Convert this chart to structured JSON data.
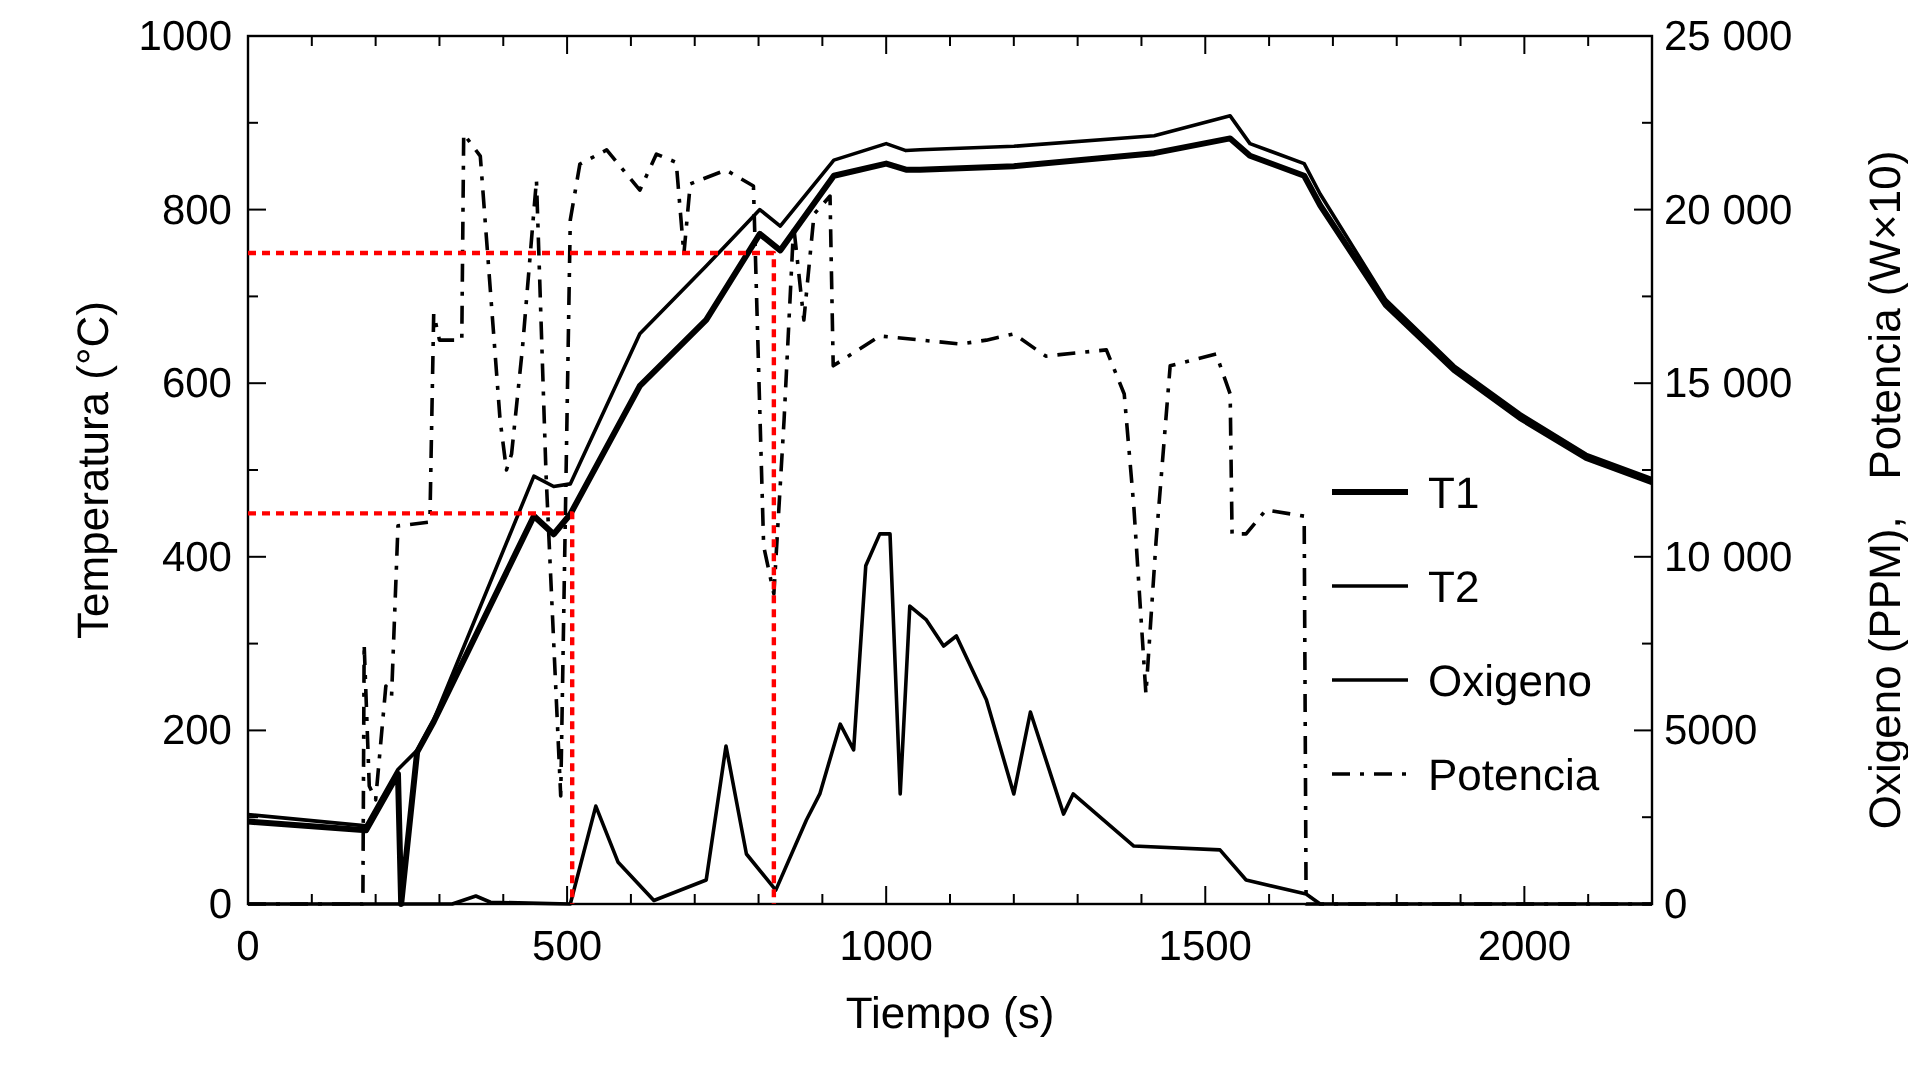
{
  "chart_data": {
    "type": "line",
    "xlabel": "Tiempo (s)",
    "ylabel": "Temperatura (°C)",
    "y2label": "Oxigeno (PPM),   Potencia (W×10)",
    "xlim": [
      0,
      2200
    ],
    "xticks": [
      0,
      {
        "value": 100,
        "label": null
      },
      {
        "value": 200,
        "label": null
      },
      {
        "value": 300,
        "label": null
      },
      {
        "value": 400,
        "label": null
      },
      500,
      {
        "value": 600,
        "label": null
      },
      {
        "value": 700,
        "label": null
      },
      {
        "value": 800,
        "label": null
      },
      {
        "value": 900,
        "label": null
      },
      1000,
      {
        "value": 1100,
        "label": null
      },
      {
        "value": 1200,
        "label": null
      },
      {
        "value": 1300,
        "label": null
      },
      {
        "value": 1400,
        "label": null
      },
      1500,
      {
        "value": 1600,
        "label": null
      },
      {
        "value": 1700,
        "label": null
      },
      {
        "value": 1800,
        "label": null
      },
      {
        "value": 1900,
        "label": null
      },
      2000,
      {
        "value": 2100,
        "label": null
      }
    ],
    "ylim": [
      0,
      1000
    ],
    "yticks": [
      0,
      {
        "value": 100,
        "label": null
      },
      200,
      {
        "value": 300,
        "label": null
      },
      400,
      {
        "value": 500,
        "label": null
      },
      600,
      {
        "value": 700,
        "label": null
      },
      800,
      {
        "value": 900,
        "label": null
      },
      1000
    ],
    "y2lim": [
      0,
      25000
    ],
    "y2ticks": [
      0,
      {
        "value": 2500,
        "label": null
      },
      5000,
      {
        "value": 7500,
        "label": null
      },
      {
        "value": 10000,
        "label": "10 000"
      },
      {
        "value": 12500,
        "label": null
      },
      {
        "value": 15000,
        "label": "15 000"
      },
      {
        "value": 17500,
        "label": null
      },
      {
        "value": 20000,
        "label": "20 000"
      },
      {
        "value": 22500,
        "label": null
      },
      {
        "value": 25000,
        "label": "25 000"
      }
    ],
    "grid": false,
    "legend": "right",
    "series": [
      {
        "name": "T1",
        "color": "#000000",
        "line_style": "solid",
        "x": [
          0,
          185,
          235,
          240,
          265,
          291,
          448,
          479,
          505,
          614,
          718,
          802,
          834,
          918,
          1000,
          1031,
          1053,
          1200,
          1420,
          1539,
          1570,
          1655,
          1680,
          1783,
          1890,
          1993,
          2097,
          2200
        ],
        "values": [
          95,
          85,
          150,
          0,
          175,
          210,
          447,
          426,
          449,
          597,
          673,
          772,
          753,
          839,
          853,
          846,
          846,
          850,
          865,
          882,
          862,
          839,
          805,
          690,
          615,
          560,
          514,
          486
        ]
      },
      {
        "name": "T2",
        "color": "#000000",
        "line_style": "solid",
        "x": [
          0,
          185,
          235,
          265,
          291,
          448,
          479,
          505,
          614,
          718,
          802,
          834,
          918,
          1000,
          1031,
          1053,
          1200,
          1420,
          1539,
          1570,
          1655,
          1680,
          1783,
          1890,
          1993,
          2097,
          2200
        ],
        "values": [
          103,
          90,
          155,
          177,
          212,
          493,
          481,
          484,
          657,
          735,
          800,
          781,
          857,
          876,
          868,
          869,
          873,
          885,
          908,
          876,
          853,
          818,
          696,
          620,
          565,
          518,
          490
        ]
      },
      {
        "name": "Oxigeno",
        "color": "#000000",
        "line_style": "solid",
        "axis": "y2",
        "x": [
          0,
          320,
          357,
          380,
          505,
          545,
          580,
          636,
          718,
          749,
          781,
          827,
          875,
          896,
          928,
          949,
          968,
          990,
          1006,
          1022,
          1037,
          1063,
          1090,
          1110,
          1157,
          1200,
          1226,
          1278,
          1293,
          1388,
          1523,
          1564,
          1658,
          1680,
          2200
        ],
        "values": [
          0,
          0,
          230,
          50,
          0,
          2820,
          1200,
          100,
          690,
          4550,
          1440,
          400,
          2420,
          3170,
          5180,
          4440,
          9740,
          10660,
          10660,
          3170,
          8580,
          8180,
          7430,
          7720,
          5880,
          3170,
          5530,
          2590,
          3170,
          1670,
          1560,
          690,
          290,
          0,
          0
        ]
      },
      {
        "name": "Potencia",
        "color": "#000000",
        "line_style": "dashed",
        "axis": "y2",
        "x": [
          0,
          180,
          182,
          190,
          200,
          216,
          225,
          235,
          285,
          291,
          300,
          335,
          338,
          364,
          395,
          405,
          413,
          430,
          452,
          467,
          490,
          505,
          520,
          562,
          614,
          640,
          671,
          683,
          693,
          749,
          792,
          808,
          824,
          840,
          855,
          871,
          887,
          912,
          917,
          990,
          1116,
          1157,
          1200,
          1250,
          1345,
          1373,
          1388,
          1407,
          1423,
          1445,
          1517,
          1539,
          1542,
          1564,
          1595,
          1655,
          1658,
          2200
        ],
        "values": [
          0,
          0,
          7490,
          3400,
          3000,
          6280,
          6000,
          10890,
          11000,
          17000,
          16240,
          16240,
          22180,
          21540,
          13940,
          12500,
          12960,
          16000,
          20850,
          12380,
          3110,
          19700,
          21310,
          21720,
          20560,
          21600,
          21360,
          18720,
          20740,
          21140,
          20680,
          10310,
          8930,
          13940,
          19530,
          16820,
          19870,
          20390,
          15500,
          16360,
          16130,
          16240,
          16420,
          15780,
          15960,
          14690,
          11460,
          6050,
          10480,
          15500,
          15840,
          14690,
          10660,
          10660,
          11350,
          11170,
          0,
          0
        ]
      },
      {
        "color": "#ff0000",
        "line_style": "dotted",
        "x": [
          0,
          508,
          508
        ],
        "values": [
          450,
          450,
          0
        ]
      },
      {
        "color": "#ff0000",
        "line_style": "dotted",
        "x": [
          0,
          824,
          824
        ],
        "values": [
          750,
          750,
          0
        ]
      }
    ]
  }
}
